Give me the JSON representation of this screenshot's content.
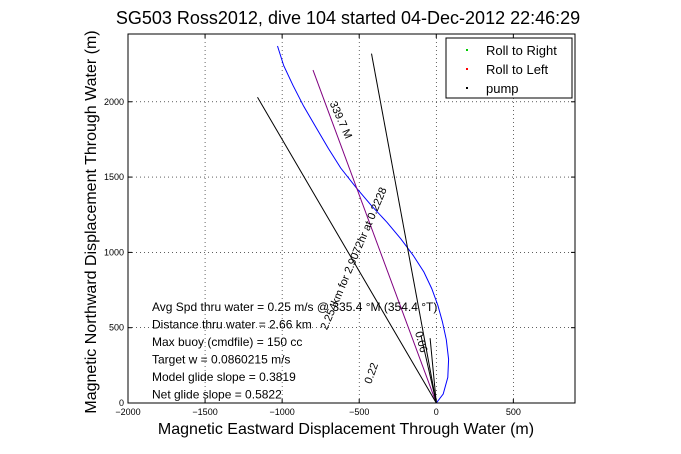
{
  "chart_data": {
    "type": "line",
    "title": "SG503 Ross2012, dive 104 started 04-Dec-2012 22:46:29",
    "xlabel": "Magnetic Eastward Displacement Through Water (m)",
    "ylabel": "Magnetic Northward Displacement Through Water (m)",
    "xlim": [
      -2000,
      900
    ],
    "ylim": [
      0,
      2450
    ],
    "xticks": [
      -2000,
      -1500,
      -1000,
      -500,
      0,
      500
    ],
    "xtick_labels": [
      "−2000",
      "−1500",
      "−1000",
      "−500",
      "0",
      "500"
    ],
    "yticks": [
      0,
      500,
      1000,
      1500,
      2000
    ],
    "ytick_labels": [
      "0",
      "500",
      "1000",
      "1500",
      "2000"
    ],
    "grid": true,
    "legend_position": "top-right",
    "legend": [
      {
        "label": "Roll to Right",
        "color": "#00cc00"
      },
      {
        "label": "Roll to Left",
        "color": "#ff0000"
      },
      {
        "label": "pump",
        "color": "#000000"
      }
    ],
    "series": [
      {
        "name": "track",
        "color": "#0000ff",
        "x": [
          0,
          45,
          75,
          80,
          65,
          40,
          10,
          -30,
          -80,
          -150,
          -230,
          -320,
          -420,
          -520,
          -620,
          -700,
          -780,
          -860,
          -930,
          -990,
          -1030
        ],
        "y": [
          0,
          60,
          170,
          290,
          420,
          540,
          650,
          760,
          870,
          980,
          1090,
          1200,
          1310,
          1430,
          1560,
          1690,
          1830,
          1970,
          2110,
          2240,
          2370
        ]
      },
      {
        "name": "heading",
        "color": "#800080",
        "x": [
          0,
          -800
        ],
        "y": [
          0,
          2210
        ]
      },
      {
        "name": "bound-1",
        "color": "#000000",
        "x": [
          0,
          -1160
        ],
        "y": [
          0,
          2030
        ]
      },
      {
        "name": "bound-2",
        "color": "#000000",
        "x": [
          0,
          -420
        ],
        "y": [
          0,
          2320
        ]
      },
      {
        "name": "inner-1",
        "color": "#000000",
        "x": [
          0,
          -100
        ],
        "y": [
          0,
          450
        ]
      },
      {
        "name": "inner-2",
        "color": "#000000",
        "x": [
          0,
          -40
        ],
        "y": [
          0,
          430
        ]
      }
    ],
    "line_labels": [
      {
        "text": "339.7 M",
        "x": -640,
        "y": 1870,
        "rotation": 66
      },
      {
        "text": "2.254km for 2.9072hr at 0.2228",
        "x": -515,
        "y": 950,
        "rotation": -67
      },
      {
        "text": "0.22",
        "x": -400,
        "y": 190,
        "rotation": -70
      },
      {
        "text": "0.06",
        "x": -120,
        "y": 400,
        "rotation": 75
      }
    ],
    "annotations": [
      "Avg Spd thru water =  0.25 m/s @ 335.4 °M (354.4 °T)",
      "Distance thru water =  2.66 km",
      "Max buoy (cmdfile) = 150 cc",
      "Target w = 0.0860215 m/s",
      "Model glide slope = 0.3819",
      "Net glide slope = 0.5822"
    ]
  }
}
